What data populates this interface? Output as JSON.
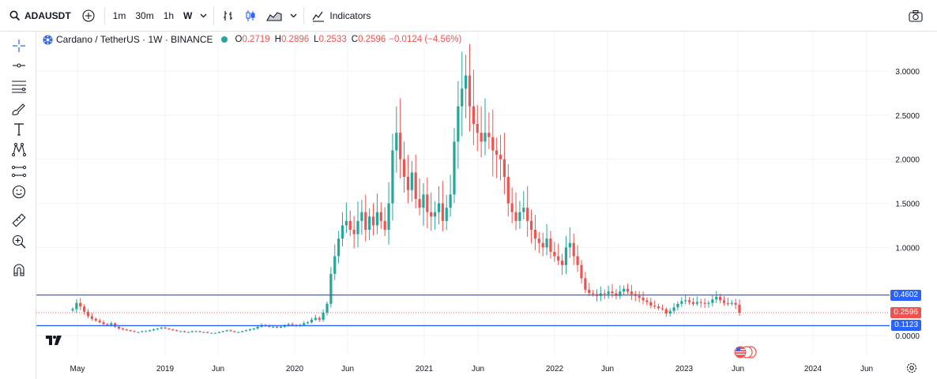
{
  "toolbar": {
    "symbol": "ADAUSDT",
    "intervals": [
      "1m",
      "30m",
      "1h",
      "W"
    ],
    "active_interval": "W",
    "indicators_label": "Indicators"
  },
  "legend": {
    "title": "Cardano / TetherUS · 1W · BINANCE",
    "o_label": "O",
    "o_value": "0.2719",
    "h_label": "H",
    "h_value": "0.2896",
    "l_label": "L",
    "l_value": "0.2533",
    "c_label": "C",
    "c_value": "0.2596",
    "change": "−0.0124 (−4.56%)"
  },
  "colors": {
    "up": "#26a69a",
    "down": "#ef5350",
    "line": "#2962ff",
    "accent": "#2962ff"
  },
  "chart_data": {
    "type": "candlestick",
    "title": "Cardano / TetherUS · 1W · BINANCE",
    "x_ticks": [
      "May",
      "2019",
      "Jun",
      "2020",
      "Jun",
      "2021",
      "Jun",
      "2022",
      "Jun",
      "2023",
      "Jun",
      "2024",
      "Jun"
    ],
    "y_ticks": [
      "3.0000",
      "2.5000",
      "2.0000",
      "1.5000",
      "1.0000",
      "0.0000"
    ],
    "ylim": [
      0,
      3.0
    ],
    "horizontal_lines": [
      {
        "name": "resistance",
        "value": 0.4602,
        "label": "0.4602"
      },
      {
        "name": "support",
        "value": 0.1123,
        "label": "0.1123"
      }
    ],
    "last_price": {
      "value": 0.2596,
      "label": "0.2596"
    },
    "series": [
      {
        "name": "ADAUSDT",
        "close": [
          0.3,
          0.37,
          0.33,
          0.27,
          0.22,
          0.19,
          0.17,
          0.15,
          0.13,
          0.12,
          0.14,
          0.1,
          0.08,
          0.07,
          0.06,
          0.05,
          0.04,
          0.04,
          0.05,
          0.05,
          0.06,
          0.07,
          0.08,
          0.09,
          0.08,
          0.07,
          0.06,
          0.05,
          0.05,
          0.04,
          0.04,
          0.05,
          0.05,
          0.04,
          0.04,
          0.03,
          0.03,
          0.03,
          0.04,
          0.05,
          0.06,
          0.05,
          0.04,
          0.04,
          0.05,
          0.06,
          0.07,
          0.08,
          0.1,
          0.12,
          0.11,
          0.1,
          0.1,
          0.09,
          0.1,
          0.12,
          0.13,
          0.12,
          0.11,
          0.12,
          0.14,
          0.15,
          0.18,
          0.2,
          0.18,
          0.26,
          0.36,
          0.7,
          0.9,
          1.1,
          1.25,
          1.3,
          1.2,
          1.15,
          1.3,
          1.4,
          1.2,
          1.35,
          1.25,
          1.4,
          1.3,
          1.2,
          1.5,
          2.1,
          2.3,
          2.0,
          1.8,
          1.65,
          1.85,
          1.55,
          1.45,
          1.6,
          1.4,
          1.35,
          1.4,
          1.5,
          1.3,
          1.45,
          1.6,
          2.2,
          2.6,
          2.8,
          2.95,
          2.6,
          2.4,
          2.3,
          2.2,
          2.3,
          2.25,
          2.1,
          2.05,
          2.0,
          1.8,
          1.5,
          1.4,
          1.3,
          1.4,
          1.45,
          1.3,
          1.2,
          1.1,
          1.05,
          1.0,
          1.1,
          0.95,
          0.9,
          0.85,
          0.8,
          1.0,
          1.05,
          0.9,
          0.8,
          0.65,
          0.52,
          0.48,
          0.47,
          0.45,
          0.48,
          0.47,
          0.5,
          0.48,
          0.45,
          0.5,
          0.53,
          0.5,
          0.47,
          0.45,
          0.43,
          0.4,
          0.38,
          0.34,
          0.33,
          0.31,
          0.3,
          0.25,
          0.28,
          0.32,
          0.36,
          0.39,
          0.4,
          0.38,
          0.36,
          0.38,
          0.37,
          0.36,
          0.37,
          0.41,
          0.44,
          0.4,
          0.37,
          0.36,
          0.37,
          0.35,
          0.26
        ]
      }
    ]
  }
}
